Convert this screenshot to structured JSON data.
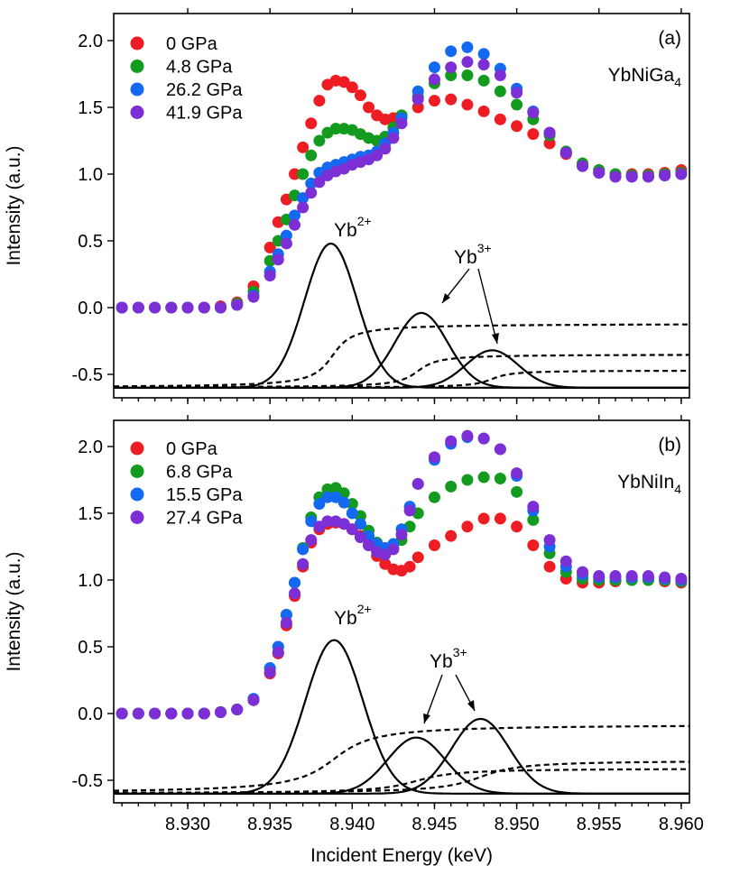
{
  "chart_data": [
    {
      "type": "scatter",
      "panel_label": "(a)",
      "sample": "YbNiGa",
      "sample_sub": "4",
      "ylabel": "Intensity (a.u.)",
      "ylim": [
        -0.6,
        2.15
      ],
      "yticks": [
        -0.5,
        0.0,
        0.5,
        1.0,
        1.5,
        2.0
      ],
      "ytick_labels": [
        "-0.5",
        "0.0",
        "0.5",
        "1.0",
        "1.5",
        "2.0"
      ],
      "series": [
        {
          "name": "0 GPa",
          "color": "#ee1d23",
          "x": [
            8.926,
            8.927,
            8.928,
            8.929,
            8.93,
            8.931,
            8.932,
            8.933,
            8.934,
            8.935,
            8.9355,
            8.936,
            8.9365,
            8.937,
            8.9375,
            8.938,
            8.9385,
            8.939,
            8.9395,
            8.94,
            8.9405,
            8.941,
            8.9415,
            8.942,
            8.9425,
            8.943,
            8.944,
            8.945,
            8.946,
            8.947,
            8.948,
            8.949,
            8.95,
            8.951,
            8.952,
            8.953,
            8.954,
            8.955,
            8.956,
            8.957,
            8.958,
            8.959,
            8.96
          ],
          "y": [
            0.0,
            0.0,
            0.0,
            0.0,
            0.0,
            0.0,
            0.01,
            0.04,
            0.16,
            0.45,
            0.64,
            0.81,
            1.0,
            1.2,
            1.38,
            1.55,
            1.67,
            1.7,
            1.69,
            1.65,
            1.59,
            1.5,
            1.44,
            1.41,
            1.42,
            1.44,
            1.5,
            1.55,
            1.56,
            1.52,
            1.47,
            1.41,
            1.36,
            1.3,
            1.23,
            1.15,
            1.08,
            1.03,
            1.0,
            1.0,
            1.0,
            1.01,
            1.03
          ]
        },
        {
          "name": "4.8 GPa",
          "color": "#129b1e",
          "x": [
            8.926,
            8.927,
            8.928,
            8.929,
            8.93,
            8.931,
            8.932,
            8.933,
            8.934,
            8.935,
            8.9355,
            8.936,
            8.9365,
            8.937,
            8.9375,
            8.938,
            8.9385,
            8.939,
            8.9395,
            8.94,
            8.9405,
            8.941,
            8.9415,
            8.942,
            8.9425,
            8.943,
            8.944,
            8.945,
            8.946,
            8.947,
            8.948,
            8.949,
            8.95,
            8.951,
            8.952,
            8.953,
            8.954,
            8.955,
            8.956,
            8.957,
            8.958,
            8.959,
            8.96
          ],
          "y": [
            0.0,
            0.0,
            0.0,
            0.0,
            0.0,
            0.0,
            0.0,
            0.03,
            0.12,
            0.35,
            0.5,
            0.66,
            0.84,
            1.0,
            1.14,
            1.25,
            1.31,
            1.34,
            1.34,
            1.33,
            1.3,
            1.27,
            1.25,
            1.28,
            1.35,
            1.44,
            1.58,
            1.68,
            1.74,
            1.74,
            1.7,
            1.62,
            1.52,
            1.41,
            1.29,
            1.17,
            1.08,
            1.03,
            1.0,
            0.99,
            0.99,
            1.0,
            1.01
          ]
        },
        {
          "name": "26.2 GPa",
          "color": "#1469f2",
          "x": [
            8.926,
            8.927,
            8.928,
            8.929,
            8.93,
            8.931,
            8.932,
            8.933,
            8.934,
            8.935,
            8.9355,
            8.936,
            8.9365,
            8.937,
            8.9375,
            8.938,
            8.9385,
            8.939,
            8.9395,
            8.94,
            8.9405,
            8.941,
            8.9415,
            8.942,
            8.9425,
            8.943,
            8.944,
            8.945,
            8.946,
            8.947,
            8.948,
            8.949,
            8.95,
            8.951,
            8.952,
            8.953,
            8.954,
            8.955,
            8.956,
            8.957,
            8.958,
            8.959,
            8.96
          ],
          "y": [
            0.0,
            0.0,
            0.0,
            0.0,
            0.0,
            0.0,
            0.0,
            0.02,
            0.09,
            0.27,
            0.4,
            0.54,
            0.69,
            0.82,
            0.93,
            1.01,
            1.05,
            1.07,
            1.09,
            1.11,
            1.13,
            1.14,
            1.17,
            1.23,
            1.31,
            1.42,
            1.62,
            1.8,
            1.92,
            1.95,
            1.9,
            1.79,
            1.64,
            1.47,
            1.31,
            1.16,
            1.06,
            1.01,
            0.98,
            0.98,
            0.98,
            0.99,
            1.0
          ]
        },
        {
          "name": "41.9 GPa",
          "color": "#7b2fd4",
          "x": [
            8.926,
            8.927,
            8.928,
            8.929,
            8.93,
            8.931,
            8.932,
            8.933,
            8.934,
            8.935,
            8.9355,
            8.936,
            8.9365,
            8.937,
            8.9375,
            8.938,
            8.9385,
            8.939,
            8.9395,
            8.94,
            8.9405,
            8.941,
            8.9415,
            8.942,
            8.9425,
            8.943,
            8.944,
            8.945,
            8.946,
            8.947,
            8.948,
            8.949,
            8.95,
            8.951,
            8.952,
            8.953,
            8.954,
            8.955,
            8.956,
            8.957,
            8.958,
            8.959,
            8.96
          ],
          "y": [
            0.0,
            0.0,
            0.0,
            0.0,
            0.0,
            0.0,
            0.0,
            0.02,
            0.08,
            0.24,
            0.36,
            0.48,
            0.62,
            0.75,
            0.86,
            0.94,
            0.99,
            1.02,
            1.04,
            1.07,
            1.09,
            1.11,
            1.14,
            1.19,
            1.27,
            1.38,
            1.56,
            1.71,
            1.8,
            1.84,
            1.82,
            1.74,
            1.61,
            1.46,
            1.31,
            1.16,
            1.06,
            1.01,
            0.98,
            0.98,
            0.98,
            0.99,
            1.0
          ]
        }
      ],
      "fit_peaks": [
        {
          "center": 8.9387,
          "sigma": 1.6,
          "amplitude": 1.08
        },
        {
          "center": 8.9442,
          "sigma": 1.6,
          "amplitude": 0.56
        },
        {
          "center": 8.9485,
          "sigma": 1.6,
          "amplitude": 0.28
        }
      ],
      "fit_steps": [
        {
          "center": 8.9388,
          "width": 0.9,
          "height": 0.48
        },
        {
          "center": 8.944,
          "width": 0.9,
          "height": 0.25
        },
        {
          "center": 8.9485,
          "width": 0.9,
          "height": 0.13
        }
      ],
      "fit_baseline": -0.6,
      "annotations": {
        "yb2": "Yb",
        "yb2_sup": "2+",
        "yb3": "Yb",
        "yb3_sup": "3+"
      }
    },
    {
      "type": "scatter",
      "panel_label": "(b)",
      "sample": "YbNiIn",
      "sample_sub": "4",
      "xlabel": "Incident Energy (keV)",
      "ylabel": "Intensity (a.u.)",
      "xlim": [
        8.9255,
        8.9605
      ],
      "xticks": [
        8.93,
        8.935,
        8.94,
        8.945,
        8.95,
        8.955,
        8.96
      ],
      "xtick_labels": [
        "8.930",
        "8.935",
        "8.940",
        "8.945",
        "8.950",
        "8.955",
        "8.960"
      ],
      "ylim": [
        -0.6,
        2.2
      ],
      "yticks": [
        -0.5,
        0.0,
        0.5,
        1.0,
        1.5,
        2.0
      ],
      "ytick_labels": [
        "-0.5",
        "0.0",
        "0.5",
        "1.0",
        "1.5",
        "2.0"
      ],
      "series": [
        {
          "name": "0 GPa",
          "color": "#ee1d23",
          "x": [
            8.926,
            8.927,
            8.928,
            8.929,
            8.93,
            8.931,
            8.932,
            8.933,
            8.934,
            8.935,
            8.9355,
            8.936,
            8.9365,
            8.937,
            8.9375,
            8.938,
            8.9385,
            8.939,
            8.9395,
            8.94,
            8.9405,
            8.941,
            8.9415,
            8.942,
            8.9425,
            8.943,
            8.9435,
            8.944,
            8.945,
            8.946,
            8.947,
            8.948,
            8.949,
            8.95,
            8.951,
            8.952,
            8.953,
            8.954,
            8.955,
            8.956,
            8.957,
            8.958,
            8.959,
            8.96
          ],
          "y": [
            0.0,
            0.0,
            0.0,
            0.0,
            0.0,
            0.0,
            0.01,
            0.03,
            0.1,
            0.3,
            0.45,
            0.66,
            0.88,
            1.1,
            1.28,
            1.38,
            1.42,
            1.43,
            1.42,
            1.38,
            1.33,
            1.26,
            1.18,
            1.12,
            1.08,
            1.07,
            1.1,
            1.17,
            1.26,
            1.33,
            1.4,
            1.46,
            1.46,
            1.4,
            1.26,
            1.1,
            1.01,
            0.98,
            0.98,
            0.99,
            1.0,
            1.0,
            0.99,
            0.98
          ]
        },
        {
          "name": "6.8 GPa",
          "color": "#129b1e",
          "x": [
            8.926,
            8.927,
            8.928,
            8.929,
            8.93,
            8.931,
            8.932,
            8.933,
            8.934,
            8.935,
            8.9355,
            8.936,
            8.9365,
            8.937,
            8.9375,
            8.938,
            8.9385,
            8.939,
            8.9395,
            8.94,
            8.9405,
            8.941,
            8.9415,
            8.942,
            8.9425,
            8.943,
            8.9435,
            8.944,
            8.945,
            8.946,
            8.947,
            8.948,
            8.949,
            8.95,
            8.951,
            8.952,
            8.953,
            8.954,
            8.955,
            8.956,
            8.957,
            8.958,
            8.959,
            8.96
          ],
          "y": [
            0.0,
            0.0,
            0.0,
            0.0,
            0.0,
            0.0,
            0.01,
            0.03,
            0.11,
            0.34,
            0.5,
            0.74,
            0.98,
            1.24,
            1.47,
            1.62,
            1.68,
            1.69,
            1.65,
            1.57,
            1.48,
            1.37,
            1.28,
            1.24,
            1.24,
            1.3,
            1.4,
            1.5,
            1.62,
            1.7,
            1.75,
            1.77,
            1.76,
            1.66,
            1.45,
            1.2,
            1.06,
            1.01,
            1.0,
            1.0,
            1.0,
            1.0,
            1.0,
            0.99
          ]
        },
        {
          "name": "15.5 GPa",
          "color": "#1469f2",
          "x": [
            8.926,
            8.927,
            8.928,
            8.929,
            8.93,
            8.931,
            8.932,
            8.933,
            8.934,
            8.935,
            8.9355,
            8.936,
            8.9365,
            8.937,
            8.9375,
            8.938,
            8.9385,
            8.939,
            8.9395,
            8.94,
            8.9405,
            8.941,
            8.9415,
            8.942,
            8.9425,
            8.943,
            8.9435,
            8.944,
            8.945,
            8.946,
            8.947,
            8.948,
            8.949,
            8.95,
            8.951,
            8.952,
            8.953,
            8.954,
            8.955,
            8.956,
            8.957,
            8.958,
            8.959,
            8.96
          ],
          "y": [
            0.0,
            0.0,
            0.0,
            0.0,
            0.0,
            0.0,
            0.01,
            0.03,
            0.11,
            0.34,
            0.5,
            0.74,
            0.98,
            1.23,
            1.44,
            1.57,
            1.62,
            1.62,
            1.58,
            1.5,
            1.42,
            1.33,
            1.27,
            1.24,
            1.27,
            1.38,
            1.55,
            1.72,
            1.9,
            2.02,
            2.07,
            2.06,
            1.98,
            1.78,
            1.52,
            1.25,
            1.1,
            1.04,
            1.02,
            1.02,
            1.02,
            1.02,
            1.01,
            1.0
          ]
        },
        {
          "name": "27.4 GPa",
          "color": "#7b2fd4",
          "x": [
            8.926,
            8.927,
            8.928,
            8.929,
            8.93,
            8.931,
            8.932,
            8.933,
            8.934,
            8.935,
            8.9355,
            8.936,
            8.9365,
            8.937,
            8.9375,
            8.938,
            8.9385,
            8.939,
            8.9395,
            8.94,
            8.9405,
            8.941,
            8.9415,
            8.942,
            8.9425,
            8.943,
            8.9435,
            8.944,
            8.945,
            8.946,
            8.947,
            8.948,
            8.949,
            8.95,
            8.951,
            8.952,
            8.953,
            8.954,
            8.955,
            8.956,
            8.957,
            8.958,
            8.959,
            8.96
          ],
          "y": [
            0.0,
            0.0,
            0.0,
            0.0,
            0.0,
            0.0,
            0.01,
            0.03,
            0.1,
            0.31,
            0.46,
            0.68,
            0.9,
            1.12,
            1.3,
            1.4,
            1.44,
            1.44,
            1.42,
            1.38,
            1.32,
            1.26,
            1.21,
            1.19,
            1.23,
            1.34,
            1.52,
            1.72,
            1.92,
            2.04,
            2.08,
            2.06,
            1.98,
            1.8,
            1.55,
            1.3,
            1.14,
            1.06,
            1.03,
            1.03,
            1.03,
            1.03,
            1.02,
            1.01
          ]
        }
      ],
      "fit_peaks": [
        {
          "center": 8.9389,
          "sigma": 1.75,
          "amplitude": 1.15
        },
        {
          "center": 8.9439,
          "sigma": 1.75,
          "amplitude": 0.42
        },
        {
          "center": 8.9478,
          "sigma": 1.75,
          "amplitude": 0.56
        }
      ],
      "fit_steps": [
        {
          "center": 8.9389,
          "width": 1.8,
          "height": 0.52
        },
        {
          "center": 8.9439,
          "width": 1.8,
          "height": 0.19
        },
        {
          "center": 8.9478,
          "width": 1.8,
          "height": 0.25
        }
      ],
      "fit_baseline": -0.6,
      "annotations": {
        "yb2": "Yb",
        "yb2_sup": "2+",
        "yb3": "Yb",
        "yb3_sup": "3+"
      }
    }
  ]
}
